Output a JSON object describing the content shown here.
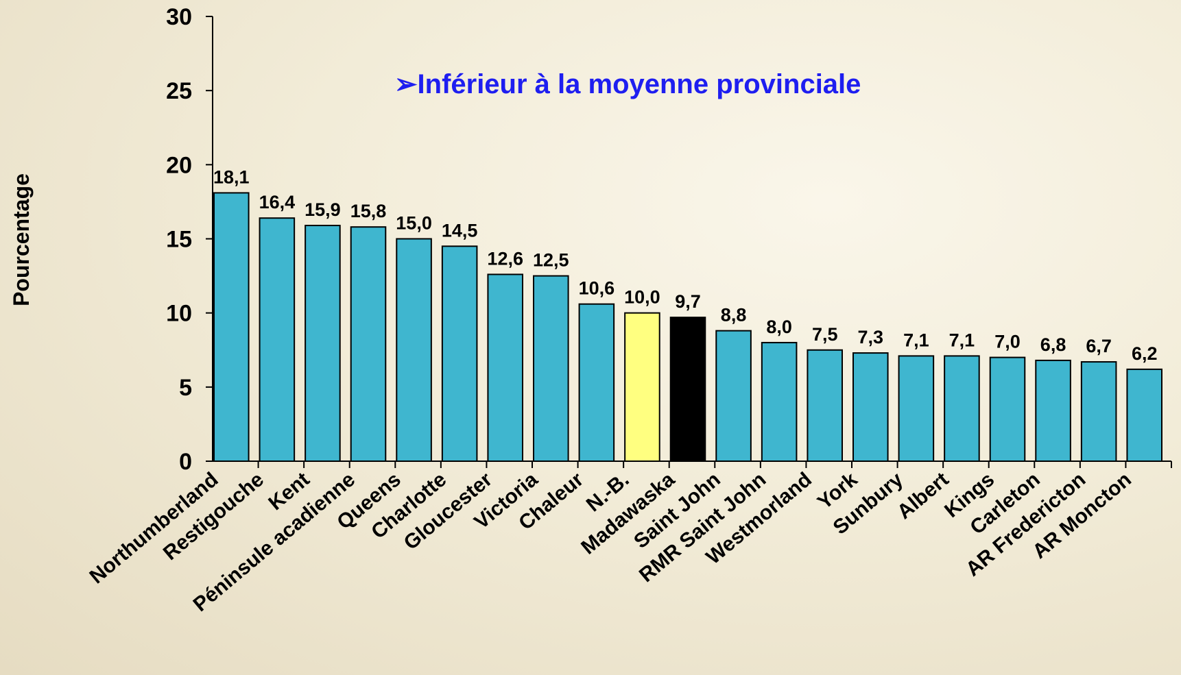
{
  "chart_data": {
    "type": "bar",
    "annotation": "➢Inférieur à la moyenne provinciale",
    "y_label": "Pourcentage",
    "categories": [
      "Northumberland",
      "Restigouche",
      "Kent",
      "Péninsule acadienne",
      "Queens",
      "Charlotte",
      "Gloucester",
      "Victoria",
      "Chaleur",
      "N.-B.",
      "Madawaska",
      "Saint John",
      "RMR Saint John",
      "Westmorland",
      "York",
      "Sunbury",
      "Albert",
      "Kings",
      "Carleton",
      "AR Fredericton",
      "AR Moncton"
    ],
    "values": [
      18.1,
      16.4,
      15.9,
      15.8,
      15.0,
      14.5,
      12.6,
      12.5,
      10.6,
      10.0,
      9.7,
      8.8,
      8.0,
      7.5,
      7.3,
      7.1,
      7.1,
      7.0,
      6.8,
      6.7,
      6.2
    ],
    "value_labels": [
      "18,1",
      "16,4",
      "15,9",
      "15,8",
      "15,0",
      "14,5",
      "12,6",
      "12,5",
      "10,6",
      "10,0",
      "9,7",
      "8,8",
      "8,0",
      "7,5",
      "7,3",
      "7,1",
      "7,1",
      "7,0",
      "6,8",
      "6,7",
      "6,2"
    ],
    "colors": [
      "#3fb6cf",
      "#3fb6cf",
      "#3fb6cf",
      "#3fb6cf",
      "#3fb6cf",
      "#3fb6cf",
      "#3fb6cf",
      "#3fb6cf",
      "#3fb6cf",
      "#ffff80",
      "#000000",
      "#3fb6cf",
      "#3fb6cf",
      "#3fb6cf",
      "#3fb6cf",
      "#3fb6cf",
      "#3fb6cf",
      "#3fb6cf",
      "#3fb6cf",
      "#3fb6cf",
      "#3fb6cf"
    ],
    "ylim": [
      0,
      30
    ],
    "yticks": [
      0,
      5,
      10,
      15,
      20,
      25,
      30
    ]
  }
}
